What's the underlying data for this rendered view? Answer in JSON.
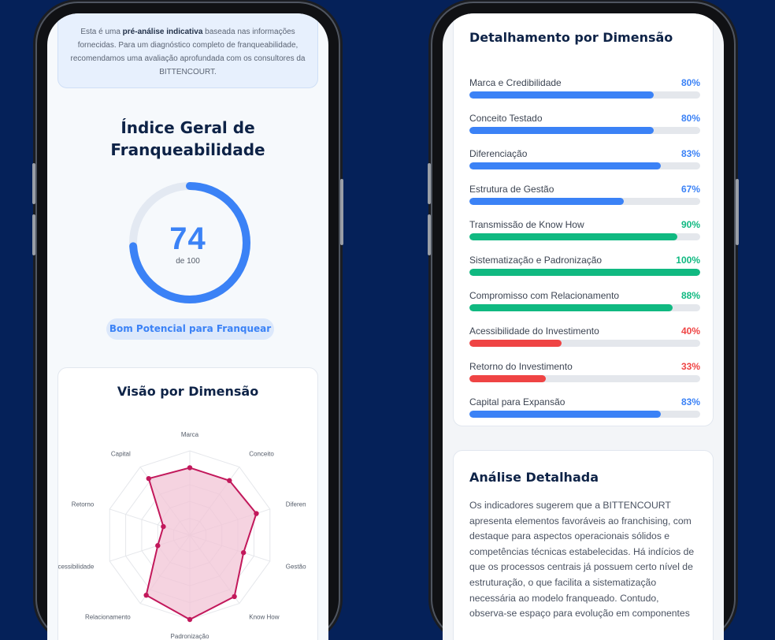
{
  "colors": {
    "background": "#052159",
    "accent_blue": "#3b82f6",
    "green": "#10b981",
    "red": "#ef4444",
    "radar_stroke": "#c2185b",
    "radar_fill": "#f1c4d6"
  },
  "left": {
    "disclaimer": {
      "pre": "Esta é uma ",
      "bold": "pré-análise indicativa",
      "post": " baseada nas informações fornecidas. Para um diagnóstico completo de franqueabilidade, recomendamos uma avaliação aprofundada com os consultores da BITTENCOURT."
    },
    "index_title": "Índice Geral de Franqueabilidade",
    "score": 74,
    "score_max": 100,
    "score_sub": "de 100",
    "badge": "Bom Potencial para Franquear",
    "radar": {
      "title": "Visão por Dimensão",
      "labels": [
        "Marca",
        "Conceito",
        "Diferen",
        "Gestão",
        "Know How",
        "Padronização",
        "Relacionamento",
        "Acessibilidade",
        "Retorno",
        "Capital"
      ],
      "values": [
        80,
        80,
        83,
        67,
        90,
        100,
        88,
        40,
        33,
        83
      ]
    }
  },
  "right": {
    "detail_title": "Detalhamento por Dimensão",
    "dimensions": [
      {
        "name": "Marca e Credibilidade",
        "value": 80,
        "label": "80%",
        "color": "#3b82f6"
      },
      {
        "name": "Conceito Testado",
        "value": 80,
        "label": "80%",
        "color": "#3b82f6"
      },
      {
        "name": "Diferenciação",
        "value": 83,
        "label": "83%",
        "color": "#3b82f6"
      },
      {
        "name": "Estrutura de Gestão",
        "value": 67,
        "label": "67%",
        "color": "#3b82f6"
      },
      {
        "name": "Transmissão de Know How",
        "value": 90,
        "label": "90%",
        "color": "#10b981"
      },
      {
        "name": "Sistematização e Padronização",
        "value": 100,
        "label": "100%",
        "color": "#10b981"
      },
      {
        "name": "Compromisso com Relacionamento",
        "value": 88,
        "label": "88%",
        "color": "#10b981"
      },
      {
        "name": "Acessibilidade do Investimento",
        "value": 40,
        "label": "40%",
        "color": "#ef4444"
      },
      {
        "name": "Retorno do Investimento",
        "value": 33,
        "label": "33%",
        "color": "#ef4444"
      },
      {
        "name": "Capital para Expansão",
        "value": 83,
        "label": "83%",
        "color": "#3b82f6"
      }
    ],
    "analysis_title": "Análise Detalhada",
    "analysis_body": "Os indicadores sugerem que a BITTENCOURT apresenta elementos favoráveis ao franchising, com destaque para aspectos operacionais sólidos e competências técnicas estabelecidas. Há indícios de que os processos centrais já possuem certo nível de estruturação, o que facilita a sistematização necessária ao modelo franqueado. Contudo, observa-se espaço para evolução em componentes"
  }
}
